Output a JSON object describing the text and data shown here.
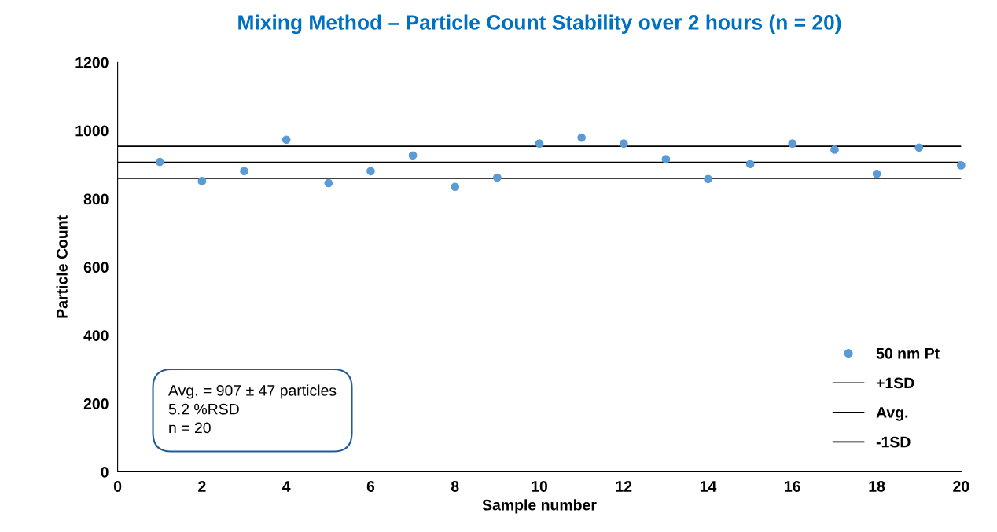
{
  "chart_data": {
    "type": "scatter",
    "title": "Mixing Method – Particle Count Stability over 2 hours (n = 20)",
    "xlabel": "Sample number",
    "ylabel": "Particle Count",
    "x": [
      1,
      2,
      3,
      4,
      5,
      6,
      7,
      8,
      9,
      10,
      11,
      12,
      13,
      14,
      15,
      16,
      17,
      18,
      19,
      20
    ],
    "series": [
      {
        "name": "50 nm Pt",
        "color": "#5b9bd5",
        "values": [
          908,
          852,
          881,
          973,
          846,
          881,
          927,
          835,
          862,
          962,
          979,
          962,
          916,
          858,
          902,
          962,
          944,
          873,
          950,
          898
        ]
      }
    ],
    "ref_lines": [
      {
        "axis": "y",
        "value": 954,
        "label": "+1SD",
        "color": "#000000"
      },
      {
        "axis": "y",
        "value": 907,
        "label": "Avg.",
        "color": "#000000"
      },
      {
        "axis": "y",
        "value": 860,
        "label": "-1SD",
        "color": "#000000"
      }
    ],
    "annotations": [
      "Avg. = 907 ± 47 particles\n5.2 %RSD\nn = 20"
    ],
    "xlim": [
      0,
      20
    ],
    "xticks": [
      0,
      2,
      4,
      6,
      8,
      10,
      12,
      14,
      16,
      18,
      20
    ],
    "ylim": [
      0,
      1200
    ],
    "yticks": [
      0,
      200,
      400,
      600,
      800,
      1000,
      1200
    ],
    "grid": false,
    "legend": "bottom right",
    "marker": "circle"
  }
}
